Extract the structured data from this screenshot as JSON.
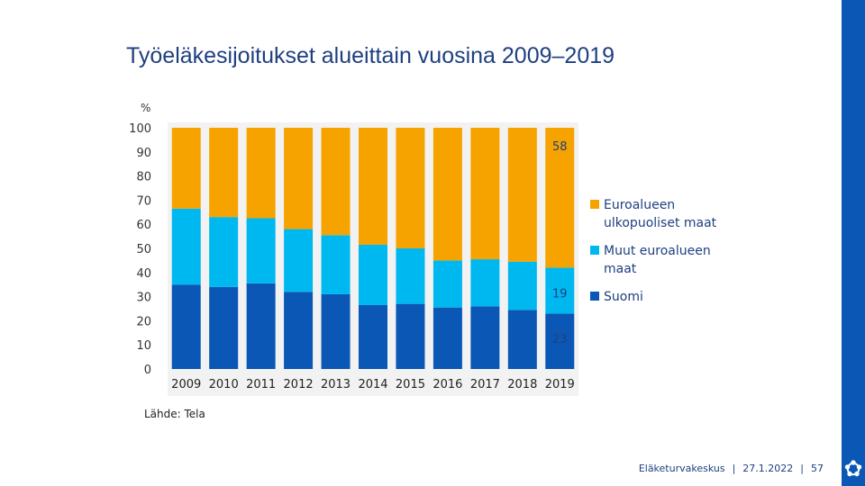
{
  "header": {
    "title": "Työeläkesijoitukset alueittain vuosina 2009–2019"
  },
  "chart_data": {
    "type": "bar",
    "stacked": true,
    "ylabel": "%",
    "ylim": [
      0,
      100
    ],
    "yticks": [
      0,
      10,
      20,
      30,
      40,
      50,
      60,
      70,
      80,
      90,
      100
    ],
    "categories": [
      "2009",
      "2010",
      "2011",
      "2012",
      "2013",
      "2014",
      "2015",
      "2016",
      "2017",
      "2018",
      "2019"
    ],
    "series": [
      {
        "name": "Suomi",
        "color": "#0b57b5",
        "values": [
          35,
          34,
          35.5,
          32,
          31,
          26.5,
          27,
          25.5,
          26,
          24.5,
          23
        ]
      },
      {
        "name": "Muut euroalueen maat",
        "color": "#00b8f0",
        "values": [
          31.5,
          29,
          27,
          26,
          24.5,
          25,
          23,
          19.5,
          19.5,
          20,
          19
        ]
      },
      {
        "name": "Euroalueen ulkopuoliset maat",
        "color": "#f6a300",
        "values": [
          33.5,
          37,
          37.5,
          42,
          44.5,
          48.5,
          50,
          55,
          54.5,
          55.5,
          58
        ]
      }
    ],
    "annotations": [
      {
        "category": "2019",
        "series": "Euroalueen ulkopuoliset maat",
        "text": "58"
      },
      {
        "category": "2019",
        "series": "Muut euroalueen maat",
        "text": "19"
      },
      {
        "category": "2019",
        "series": "Suomi",
        "text": "23"
      }
    ],
    "legend": [
      {
        "lines": [
          "Euroalueen",
          "ulkopuoliset maat"
        ],
        "color": "#f6a300"
      },
      {
        "lines": [
          "Muut euroalueen",
          "maat"
        ],
        "color": "#00b8f0"
      },
      {
        "lines": [
          "Suomi"
        ],
        "color": "#0b57b5"
      }
    ],
    "source": "Lähde: Tela"
  },
  "footer": {
    "org": "Eläketurvakeskus",
    "date": "27.1.2022",
    "page": "57"
  },
  "colors": {
    "brand": "#0b57b5",
    "title": "#1e3f80"
  }
}
